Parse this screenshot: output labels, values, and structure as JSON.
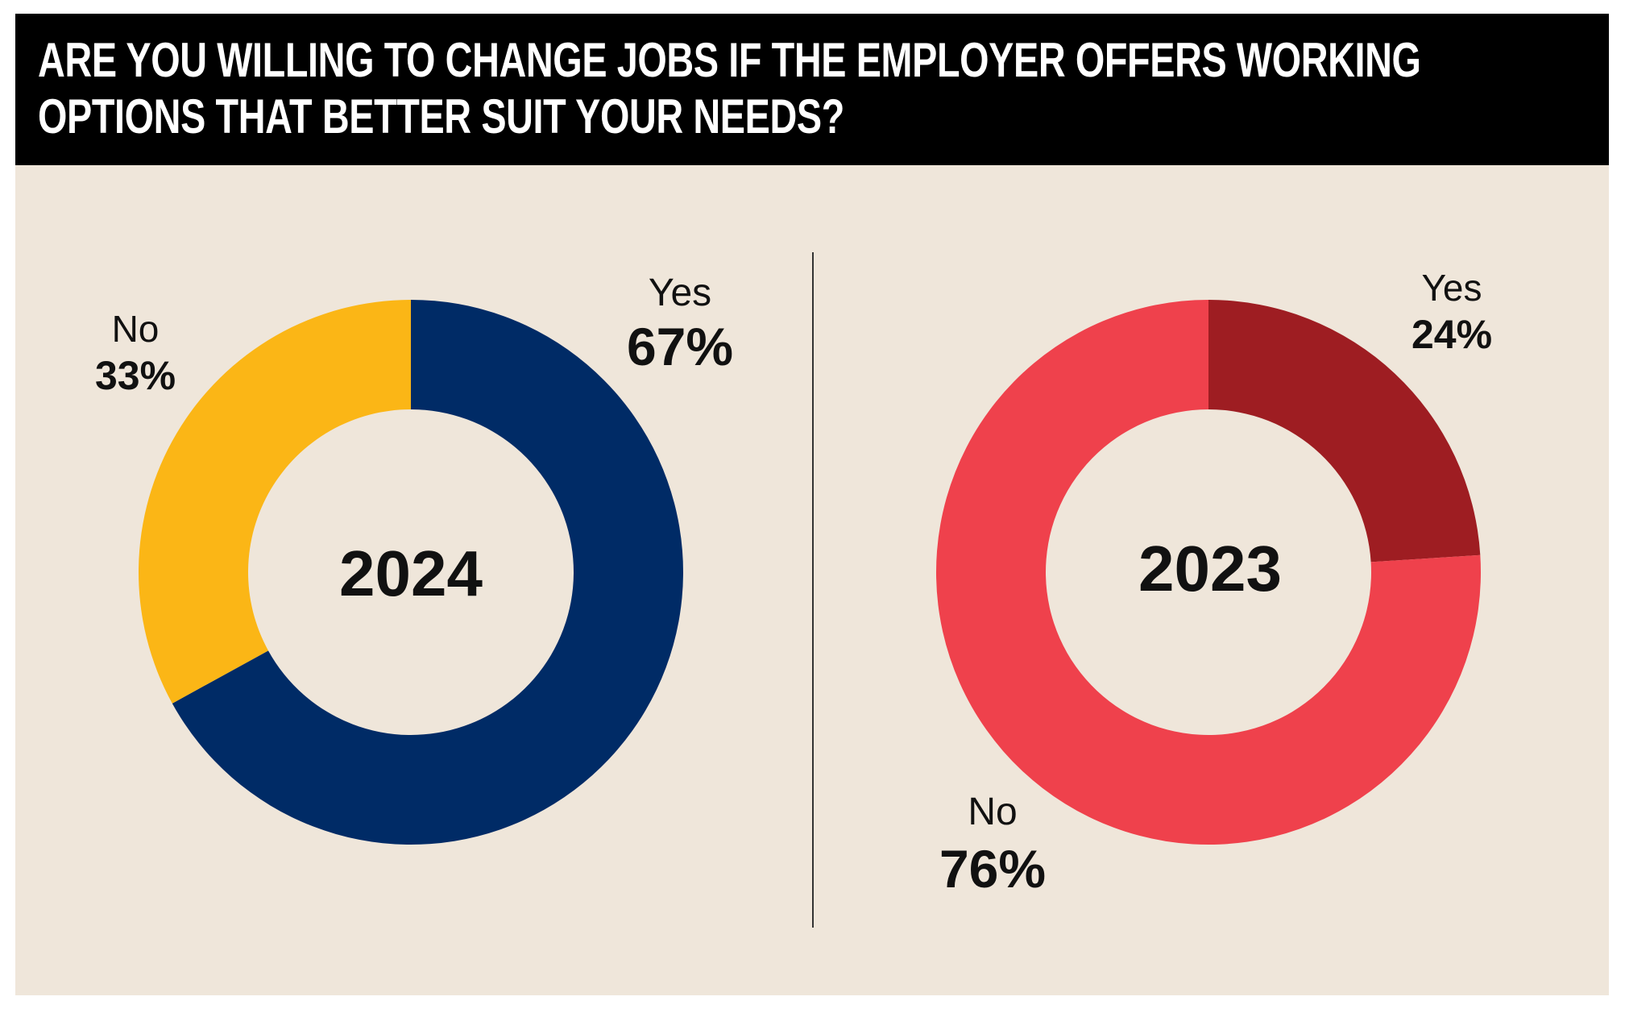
{
  "title_lines": [
    "ARE YOU WILLING TO CHANGE JOBS IF THE EMPLOYER OFFERS WORKING",
    "OPTIONS THAT BETTER SUIT YOUR NEEDS?"
  ],
  "chart_data": [
    {
      "type": "pie",
      "subtype": "donut",
      "center_label": "2024",
      "slices": [
        {
          "label": "Yes",
          "value": 67,
          "value_label": "67%",
          "color": "#002b66"
        },
        {
          "label": "No",
          "value": 33,
          "value_label": "33%",
          "color": "#fbb616"
        }
      ]
    },
    {
      "type": "pie",
      "subtype": "donut",
      "center_label": "2023",
      "slices": [
        {
          "label": "Yes",
          "value": 24,
          "value_label": "24%",
          "color": "#9e1d22"
        },
        {
          "label": "No",
          "value": 76,
          "value_label": "76%",
          "color": "#ef414c"
        }
      ]
    }
  ],
  "colors": {
    "header_bg": "#000000",
    "panel_bg": "#efe6da"
  }
}
